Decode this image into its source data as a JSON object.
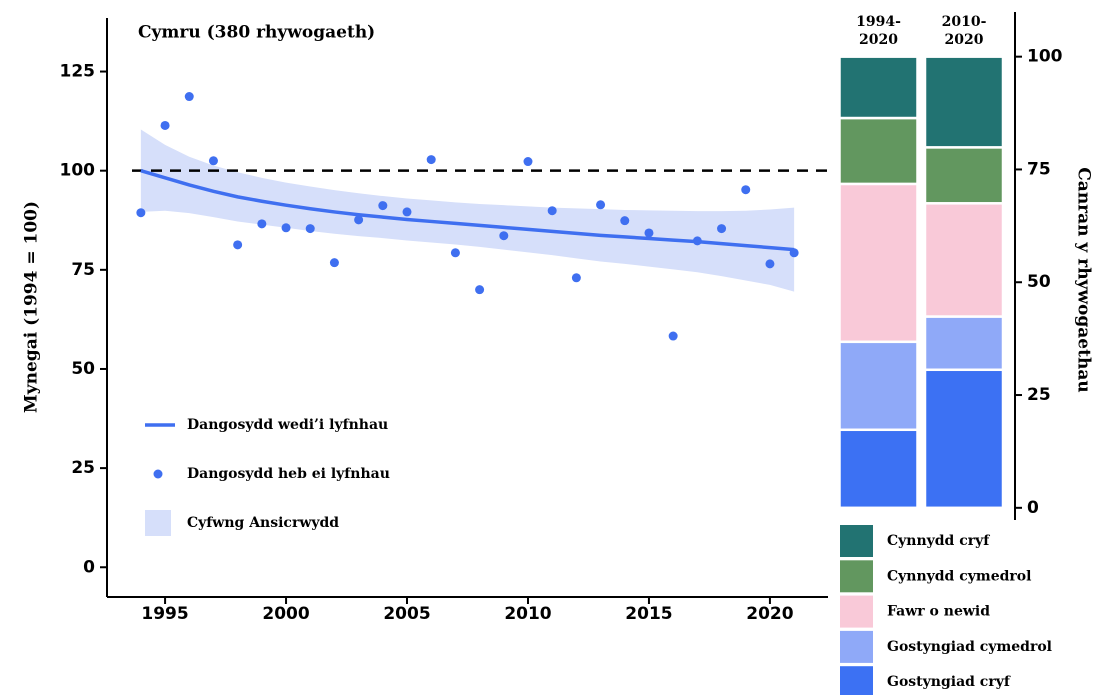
{
  "chart_data": [
    {
      "type": "line",
      "title": "Cymru (380 rhywogaeth)",
      "ylabel": "Mynegai (1994 = 100)",
      "x": [
        1994,
        1995,
        1996,
        1997,
        1998,
        1999,
        2000,
        2001,
        2002,
        2003,
        2004,
        2005,
        2006,
        2007,
        2008,
        2009,
        2010,
        2011,
        2012,
        2013,
        2014,
        2015,
        2016,
        2017,
        2018,
        2019,
        2020,
        2021
      ],
      "series": [
        {
          "name": "Dangosydd wedi’i lyfnhau",
          "type": "line",
          "color": "#3f6ff0",
          "values": [
            100,
            98.2,
            96.4,
            94.8,
            93.4,
            92.3,
            91.3,
            90.4,
            89.6,
            88.9,
            88.3,
            87.7,
            87.2,
            86.7,
            86.2,
            85.7,
            85.2,
            84.7,
            84.2,
            83.7,
            83.3,
            82.9,
            82.5,
            82.1,
            81.6,
            81.1,
            80.6,
            80.1
          ]
        },
        {
          "name": "Dangosydd heb ei lyfnhau",
          "type": "scatter",
          "color": "#3f6ff0",
          "values": [
            89.4,
            111.4,
            118.7,
            102.5,
            81.3,
            86.6,
            85.6,
            85.4,
            76.8,
            87.6,
            91.2,
            89.6,
            102.8,
            79.3,
            70.0,
            83.6,
            102.3,
            89.9,
            73.0,
            91.4,
            87.4,
            84.3,
            58.3,
            82.3,
            85.4,
            95.2,
            76.5,
            79.3
          ]
        },
        {
          "name": "Cyfwng Ansicrwydd",
          "type": "band",
          "color": "#d6dffa",
          "lower": [
            89.6,
            89.9,
            89.3,
            88.3,
            87.2,
            86.4,
            85.6,
            84.8,
            84.1,
            83.5,
            83.0,
            82.4,
            81.9,
            81.4,
            80.8,
            80.1,
            79.4,
            78.7,
            77.9,
            77.1,
            76.5,
            75.8,
            75.1,
            74.4,
            73.4,
            72.3,
            71.2,
            69.5
          ],
          "upper": [
            110.4,
            106.5,
            103.5,
            101.3,
            99.6,
            98.2,
            97.0,
            96.0,
            95.1,
            94.3,
            93.6,
            93.0,
            92.5,
            92.0,
            91.6,
            91.3,
            91.0,
            90.7,
            90.5,
            90.3,
            90.1,
            90.0,
            89.9,
            89.8,
            89.8,
            89.9,
            90.2,
            90.7
          ]
        }
      ],
      "hline": 100,
      "xlim": [
        1992.6,
        2022.4
      ],
      "xticks": [
        1995,
        2000,
        2005,
        2010,
        2015,
        2020
      ],
      "ylim": [
        -7.5,
        138.5
      ],
      "yticks": [
        0,
        25,
        50,
        75,
        100,
        125
      ]
    },
    {
      "type": "stacked_bar",
      "ylabel": "Canran y rhywogaethau",
      "categories": [
        "1994-\n2020",
        "2010-\n2020"
      ],
      "series": [
        {
          "name": "Gostyngiad cryf",
          "color": "#3c71f3",
          "values": [
            17.3,
            30.6
          ]
        },
        {
          "name": "Gostyngiad cymedrol",
          "color": "#8fa9f8",
          "values": [
            19.5,
            11.8
          ]
        },
        {
          "name": "Fawr o newid",
          "color": "#f9c9d8",
          "values": [
            35.0,
            25.1
          ]
        },
        {
          "name": "Cynnydd cymedrol",
          "color": "#62975f",
          "values": [
            14.6,
            12.4
          ]
        },
        {
          "name": "Cynnydd cryf",
          "color": "#227372",
          "values": [
            13.6,
            20.1
          ]
        }
      ],
      "ylim": [
        -2.7,
        109.9
      ],
      "yticks": [
        0,
        25,
        50,
        75,
        100
      ]
    }
  ]
}
